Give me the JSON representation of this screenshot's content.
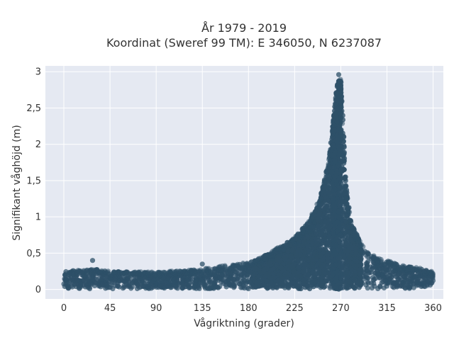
{
  "chart_data": {
    "type": "scatter",
    "title": "År 1979 - 2019",
    "subtitle": "Koordinat (Sweref 99 TM): E 346050, N 6237087",
    "xlabel": "Vågriktning (grader)",
    "ylabel": "Signifikant våghöjd (m)",
    "xlim": [
      -18,
      370
    ],
    "ylim": [
      -0.13,
      3.08
    ],
    "x_ticks": [
      0,
      45,
      90,
      135,
      180,
      225,
      270,
      315,
      360
    ],
    "x_tick_labels": [
      "0",
      "45",
      "90",
      "135",
      "180",
      "225",
      "270",
      "315",
      "360"
    ],
    "y_ticks": [
      0,
      0.5,
      1,
      1.5,
      2,
      2.5,
      3
    ],
    "y_tick_labels": [
      "0",
      "0,5",
      "1",
      "1,5",
      "2",
      "2,5",
      "3"
    ],
    "grid": true,
    "legend": "none",
    "marker_color": "#2e5068",
    "plot_bg": "#e5e9f2",
    "envelope": {
      "x": [
        0,
        30,
        45,
        90,
        135,
        180,
        200,
        225,
        240,
        250,
        258,
        262,
        266,
        268,
        270,
        272,
        275,
        280,
        290,
        300,
        315,
        330,
        345,
        360
      ],
      "ymax": [
        0.25,
        0.28,
        0.25,
        0.24,
        0.28,
        0.38,
        0.5,
        0.72,
        0.98,
        1.3,
        1.8,
        2.3,
        2.85,
        2.95,
        2.98,
        2.5,
        1.5,
        0.95,
        0.62,
        0.48,
        0.4,
        0.33,
        0.3,
        0.25
      ]
    },
    "outliers": [
      {
        "x": 28,
        "y": 0.4
      },
      {
        "x": 135,
        "y": 0.35
      },
      {
        "x": 268,
        "y": 2.96
      }
    ]
  }
}
